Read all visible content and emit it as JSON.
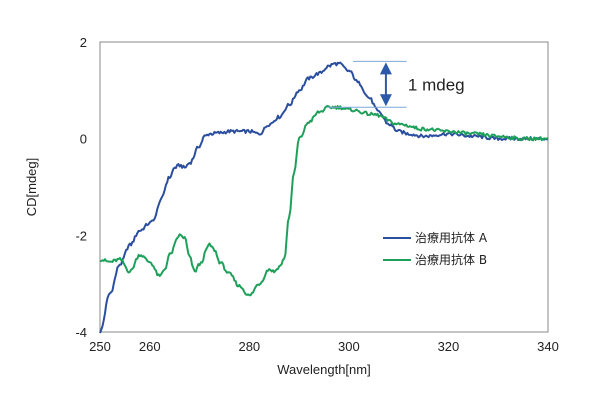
{
  "chart_data": {
    "type": "line",
    "title": "",
    "xlabel": "Wavelength[nm]",
    "ylabel": "CD[mdeg]",
    "xlim": [
      250,
      340
    ],
    "ylim": [
      -4,
      2
    ],
    "xticks": [
      "250",
      "260",
      "280",
      "300",
      "320",
      "340"
    ],
    "xtick_values": [
      250,
      260,
      280,
      300,
      320,
      340
    ],
    "yticks": [
      "2",
      "0",
      "-2",
      "-4"
    ],
    "ytick_values": [
      2,
      0,
      -2,
      -4
    ],
    "grid": false,
    "legend_position": "right",
    "series": [
      {
        "name": "治療用抗体 A",
        "color": "#2b4f9e",
        "x": [
          250,
          252,
          254,
          256,
          258,
          260,
          261,
          262,
          264,
          265,
          266,
          267,
          268,
          270,
          271,
          272,
          274,
          276,
          278,
          280,
          282,
          284,
          286,
          288,
          290,
          292,
          294,
          296,
          297,
          298,
          300,
          302,
          304,
          306,
          308,
          310,
          312,
          315,
          320,
          325,
          330,
          335,
          340
        ],
        "y": [
          -4.0,
          -3.2,
          -2.6,
          -2.2,
          -1.9,
          -1.75,
          -1.65,
          -1.3,
          -0.8,
          -0.6,
          -0.55,
          -0.6,
          -0.5,
          -0.15,
          0.05,
          0.1,
          0.12,
          0.15,
          0.15,
          0.15,
          0.1,
          0.3,
          0.45,
          0.7,
          1.0,
          1.25,
          1.35,
          1.5,
          1.55,
          1.55,
          1.4,
          1.15,
          0.85,
          0.55,
          0.3,
          0.15,
          0.1,
          0.05,
          0.1,
          0.05,
          0.0,
          0.0,
          0.0
        ]
      },
      {
        "name": "治療用抗体 B",
        "color": "#1fa05a",
        "x": [
          250,
          252,
          254,
          256,
          258,
          260,
          262,
          263,
          264,
          266,
          267,
          268,
          269,
          270,
          272,
          273,
          274,
          276,
          278,
          280,
          282,
          284,
          285,
          286,
          287,
          288,
          289,
          290,
          292,
          294,
          296,
          298,
          300,
          305,
          310,
          315,
          320,
          325,
          330,
          335,
          340
        ],
        "y": [
          -2.5,
          -2.55,
          -2.5,
          -2.75,
          -2.4,
          -2.55,
          -2.85,
          -2.7,
          -2.4,
          -2.0,
          -2.05,
          -2.45,
          -2.75,
          -2.6,
          -2.2,
          -2.3,
          -2.55,
          -2.8,
          -3.05,
          -3.25,
          -3.0,
          -2.7,
          -2.75,
          -2.65,
          -2.5,
          -1.6,
          -0.7,
          0.0,
          0.35,
          0.55,
          0.65,
          0.65,
          0.6,
          0.5,
          0.3,
          0.2,
          0.15,
          0.1,
          0.05,
          0.0,
          0.0
        ]
      }
    ],
    "annotation": {
      "label": "1 mdeg",
      "from_y": 0.65,
      "to_y": 1.6,
      "x": 299,
      "line_from_x": 296,
      "line_to_x": 312,
      "color": "#2b5aa8",
      "line_color": "#7fa7d9"
    }
  }
}
